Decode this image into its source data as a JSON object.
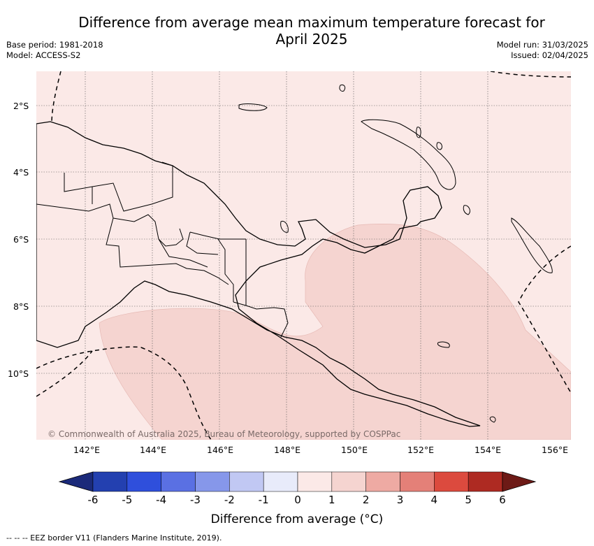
{
  "title_line1": "Difference from average mean maximum temperature forecast for",
  "title_line2": "April 2025",
  "base_period": "Base period: 1981-2018",
  "model": "Model: ACCESS-S2",
  "model_run": "Model run: 31/03/2025",
  "issued": "Issued: 02/04/2025",
  "lat_labels": [
    "2°S",
    "4°S",
    "6°S",
    "8°S",
    "10°S"
  ],
  "lon_labels": [
    "142°E",
    "144°E",
    "146°E",
    "148°E",
    "150°E",
    "152°E",
    "154°E",
    "156°E"
  ],
  "attribution": "© Commonwealth of Australia 2025, Bureau of Meteorology, supported by COSPPac",
  "colorbar": {
    "ticks": [
      "-6",
      "-5",
      "-4",
      "-3",
      "-2",
      "-1",
      "0",
      "1",
      "2",
      "3",
      "4",
      "5",
      "6"
    ],
    "colors": [
      "#1b2a7a",
      "#2340b0",
      "#2f4fdc",
      "#5a70e3",
      "#8697ea",
      "#c1c8f3",
      "#e8ebfa",
      "#fbe9e7",
      "#f5d4d0",
      "#eeaaa3",
      "#e48078",
      "#dc4a3e",
      "#ae2a22",
      "#6d1a16"
    ],
    "label": "Difference from average (°C)"
  },
  "footnote": "--  --  -- EEZ border V11 (Flanders Marine Institute, 2019)."
}
